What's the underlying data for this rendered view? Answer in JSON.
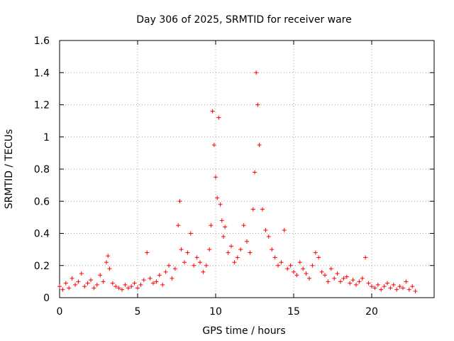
{
  "chart_data": {
    "type": "scatter",
    "title": "Day 306 of 2025, SRMTID for receiver ware",
    "xlabel": "GPS time / hours",
    "ylabel": "SRMTID / TECUs",
    "xlim": [
      0,
      24
    ],
    "ylim": [
      0,
      1.6
    ],
    "xticks": [
      0,
      5,
      10,
      15,
      20
    ],
    "xtick_labels": [
      "0",
      "5",
      "10",
      "15",
      "20"
    ],
    "yticks": [
      0,
      0.2,
      0.4,
      0.6,
      0.8,
      1,
      1.2,
      1.4,
      1.6
    ],
    "ytick_labels": [
      "0",
      "0.2",
      "0.4",
      "0.6",
      "0.8",
      "1",
      "1.2",
      "1.4",
      "1.6"
    ],
    "grid": true,
    "marker": "+",
    "series": [
      {
        "name": "SRMTID",
        "color": "#ff0000",
        "x": [
          0.0,
          0.2,
          0.4,
          0.6,
          0.8,
          1.0,
          1.2,
          1.4,
          1.6,
          1.8,
          2.0,
          2.2,
          2.4,
          2.6,
          2.8,
          3.0,
          3.1,
          3.2,
          3.4,
          3.6,
          3.8,
          4.0,
          4.2,
          4.4,
          4.6,
          4.8,
          5.0,
          5.2,
          5.4,
          5.6,
          5.8,
          6.0,
          6.2,
          6.4,
          6.6,
          6.8,
          7.0,
          7.2,
          7.4,
          7.6,
          7.7,
          7.8,
          8.0,
          8.2,
          8.4,
          8.6,
          8.8,
          9.0,
          9.2,
          9.4,
          9.6,
          9.7,
          9.8,
          9.9,
          10.0,
          10.1,
          10.2,
          10.3,
          10.4,
          10.5,
          10.6,
          10.8,
          11.0,
          11.2,
          11.4,
          11.6,
          11.8,
          12.0,
          12.2,
          12.4,
          12.5,
          12.6,
          12.7,
          12.8,
          13.0,
          13.2,
          13.4,
          13.6,
          13.8,
          14.0,
          14.2,
          14.4,
          14.6,
          14.8,
          15.0,
          15.2,
          15.4,
          15.6,
          15.8,
          16.0,
          16.2,
          16.4,
          16.6,
          16.8,
          17.0,
          17.2,
          17.4,
          17.6,
          17.8,
          18.0,
          18.2,
          18.4,
          18.6,
          18.8,
          19.0,
          19.2,
          19.4,
          19.6,
          19.8,
          20.0,
          20.2,
          20.4,
          20.6,
          20.8,
          21.0,
          21.2,
          21.4,
          21.6,
          21.8,
          22.0,
          22.2,
          22.4,
          22.6,
          22.8
        ],
        "y": [
          0.07,
          0.05,
          0.09,
          0.06,
          0.12,
          0.08,
          0.1,
          0.15,
          0.07,
          0.09,
          0.11,
          0.06,
          0.08,
          0.14,
          0.1,
          0.22,
          0.26,
          0.18,
          0.09,
          0.07,
          0.06,
          0.05,
          0.08,
          0.06,
          0.07,
          0.09,
          0.06,
          0.08,
          0.11,
          0.28,
          0.12,
          0.09,
          0.1,
          0.14,
          0.08,
          0.16,
          0.2,
          0.12,
          0.18,
          0.45,
          0.6,
          0.3,
          0.22,
          0.28,
          0.4,
          0.2,
          0.25,
          0.22,
          0.16,
          0.2,
          0.3,
          0.45,
          1.16,
          0.95,
          0.75,
          0.62,
          1.12,
          0.58,
          0.48,
          0.38,
          0.44,
          0.28,
          0.32,
          0.22,
          0.25,
          0.3,
          0.45,
          0.35,
          0.28,
          0.55,
          0.78,
          1.4,
          1.2,
          0.95,
          0.55,
          0.42,
          0.38,
          0.3,
          0.25,
          0.2,
          0.22,
          0.42,
          0.18,
          0.2,
          0.16,
          0.14,
          0.22,
          0.18,
          0.15,
          0.12,
          0.2,
          0.28,
          0.25,
          0.16,
          0.14,
          0.1,
          0.18,
          0.12,
          0.15,
          0.1,
          0.12,
          0.13,
          0.09,
          0.11,
          0.08,
          0.1,
          0.12,
          0.25,
          0.09,
          0.07,
          0.06,
          0.08,
          0.05,
          0.07,
          0.09,
          0.06,
          0.08,
          0.05,
          0.07,
          0.06,
          0.1,
          0.05,
          0.07,
          0.04
        ]
      }
    ]
  }
}
